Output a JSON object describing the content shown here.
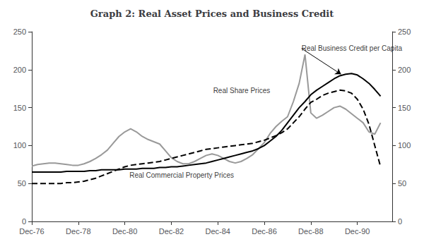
{
  "chart_data": {
    "type": "line",
    "title": "Graph 2: Real Asset Prices and Business Credit",
    "x": [
      1976,
      1976.25,
      1976.5,
      1976.75,
      1977,
      1977.25,
      1977.5,
      1977.75,
      1978,
      1978.25,
      1978.5,
      1978.75,
      1979,
      1979.25,
      1979.5,
      1979.75,
      1980,
      1980.25,
      1980.5,
      1980.75,
      1981,
      1981.25,
      1981.5,
      1981.75,
      1982,
      1982.25,
      1982.5,
      1982.75,
      1983,
      1983.25,
      1983.5,
      1983.75,
      1984,
      1984.25,
      1984.5,
      1984.75,
      1985,
      1985.25,
      1985.5,
      1985.75,
      1986,
      1986.25,
      1986.5,
      1986.75,
      1987,
      1987.25,
      1987.5,
      1987.75,
      1988,
      1988.25,
      1988.5,
      1988.75,
      1989,
      1989.25,
      1989.5,
      1989.75,
      1990,
      1990.25,
      1990.5,
      1990.75,
      1991
    ],
    "series": [
      {
        "name": "Real Share Prices",
        "color": "#999999",
        "line_style": "solid",
        "values": [
          73,
          75,
          76,
          77,
          77,
          76,
          75,
          74,
          74,
          76,
          79,
          83,
          88,
          94,
          103,
          112,
          118,
          122,
          118,
          112,
          108,
          105,
          102,
          93,
          84,
          79,
          76,
          76,
          79,
          83,
          87,
          89,
          87,
          83,
          79,
          77,
          79,
          83,
          88,
          96,
          104,
          116,
          125,
          132,
          138,
          158,
          182,
          220,
          143,
          136,
          140,
          145,
          150,
          152,
          148,
          142,
          136,
          130,
          118,
          115,
          130
        ]
      },
      {
        "name": "Real Commercial Property Prices",
        "color": "#000000",
        "line_style": "dashed",
        "values": [
          50,
          50,
          50,
          50,
          50,
          50,
          51,
          51,
          52,
          53,
          55,
          57,
          60,
          63,
          66,
          69,
          72,
          74,
          75,
          76,
          77,
          78,
          79,
          81,
          83,
          85,
          87,
          89,
          91,
          93,
          95,
          96,
          97,
          98,
          99,
          100,
          101,
          102,
          103,
          105,
          107,
          110,
          113,
          117,
          122,
          130,
          138,
          148,
          157,
          161,
          166,
          169,
          171,
          173,
          172,
          169,
          161,
          148,
          128,
          100,
          72
        ]
      },
      {
        "name": "Real Business Credit per Capita",
        "color": "#000000",
        "line_style": "solid",
        "values": [
          65,
          65,
          65,
          65,
          65,
          65,
          66,
          66,
          66,
          66,
          67,
          67,
          68,
          68,
          68,
          68,
          69,
          69,
          69,
          70,
          70,
          70,
          71,
          71,
          72,
          72,
          73,
          74,
          75,
          76,
          77,
          79,
          81,
          83,
          85,
          87,
          89,
          91,
          93,
          96,
          100,
          106,
          112,
          120,
          130,
          140,
          150,
          158,
          167,
          173,
          178,
          183,
          188,
          192,
          194,
          195,
          193,
          188,
          182,
          174,
          165
        ]
      }
    ],
    "xlim": [
      1976,
      1991.5
    ],
    "xticks": [
      {
        "value": 1976,
        "label": "Dec-76"
      },
      {
        "value": 1978,
        "label": "Dec-78"
      },
      {
        "value": 1980,
        "label": "Dec-80"
      },
      {
        "value": 1982,
        "label": "Dec-82"
      },
      {
        "value": 1984,
        "label": "Dec-84"
      },
      {
        "value": 1986,
        "label": "Dec-86"
      },
      {
        "value": 1988,
        "label": "Dec-88"
      },
      {
        "value": 1990,
        "label": "Dec-90"
      }
    ],
    "ylim": [
      0,
      250
    ],
    "yticks": [
      0,
      50,
      100,
      150,
      200,
      250
    ],
    "y2lim": [
      0,
      250
    ],
    "y2ticks": [
      0,
      50,
      100,
      150,
      200,
      250
    ],
    "grid": false,
    "annotations": [
      {
        "text": "Real Business Credit per Capita",
        "x": 1987.6,
        "y": 228,
        "arrow_x": 1989.3,
        "arrow_y": 194
      },
      {
        "text": "Real Share Prices",
        "x": 1983.8,
        "y": 168
      },
      {
        "text": "Real Commercial Property Prices",
        "x": 1980.2,
        "y": 56
      }
    ]
  }
}
